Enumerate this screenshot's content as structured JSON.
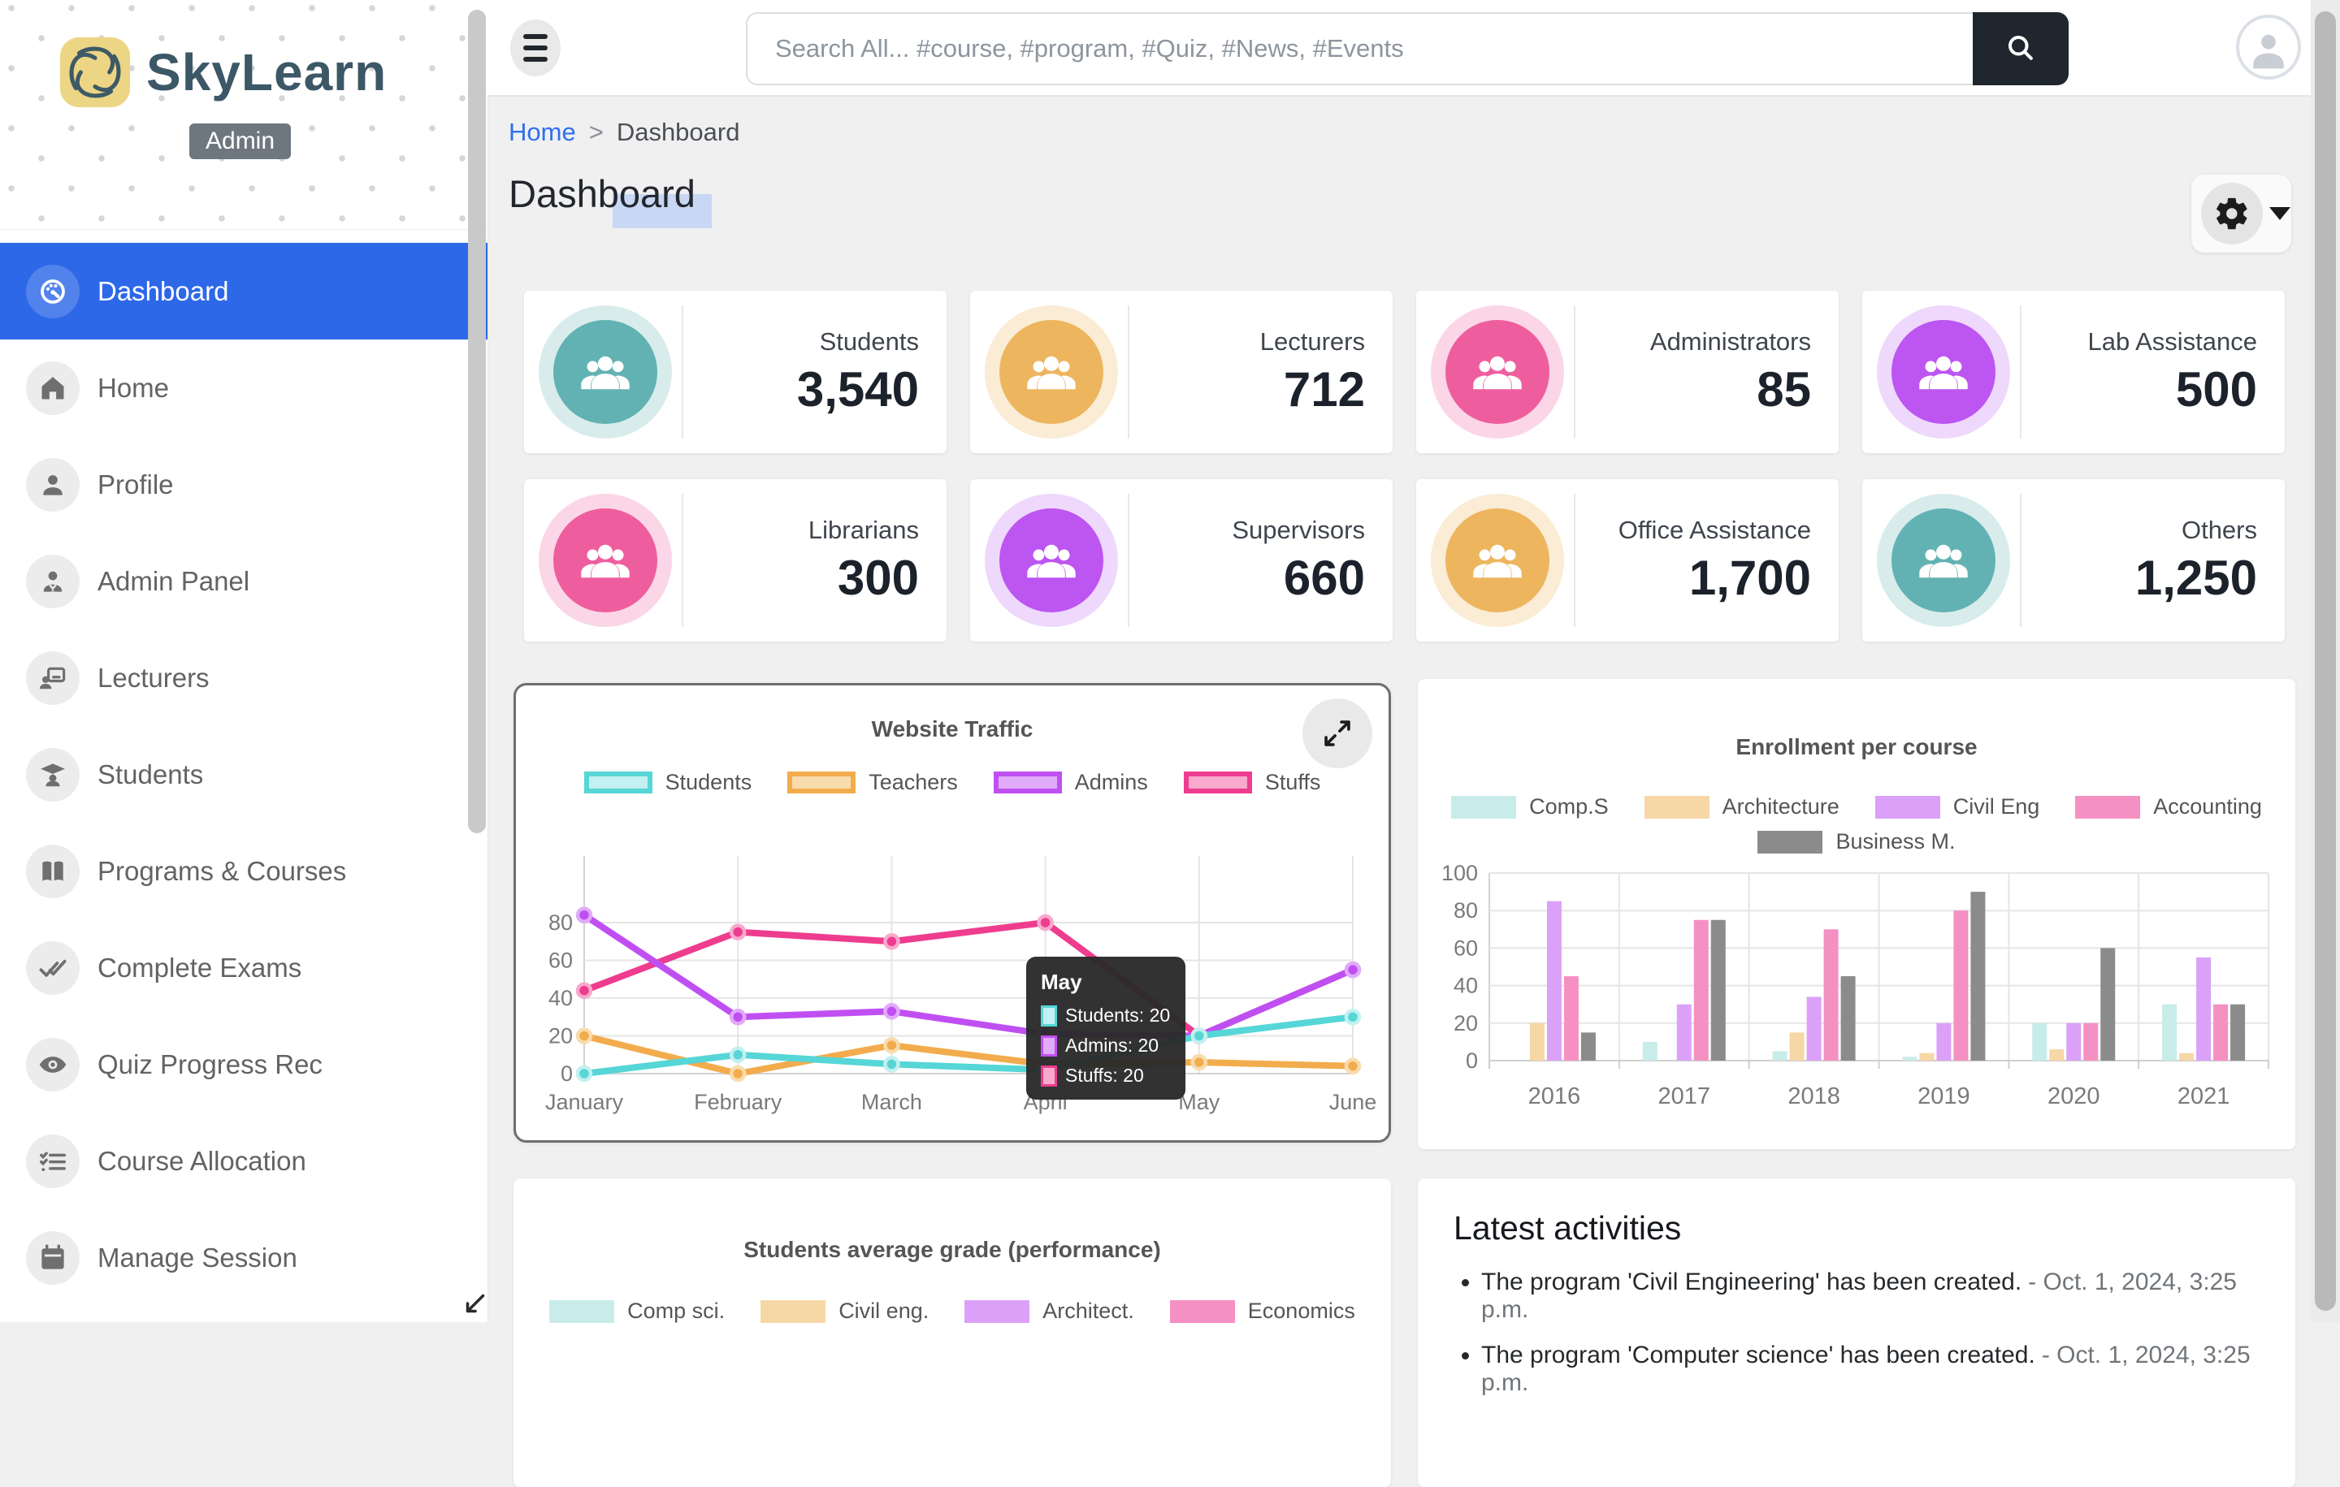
{
  "app": {
    "name": "SkyLearn",
    "badge": "Admin"
  },
  "topbar": {
    "search_placeholder": "Search All... #course, #program, #Quiz, #News, #Events"
  },
  "sidebar": {
    "items": [
      {
        "label": "Dashboard",
        "icon": "dashboard-icon",
        "active": true
      },
      {
        "label": "Home",
        "icon": "home-icon",
        "active": false
      },
      {
        "label": "Profile",
        "icon": "profile-icon",
        "active": false
      },
      {
        "label": "Admin Panel",
        "icon": "admin-panel-icon",
        "active": false
      },
      {
        "label": "Lecturers",
        "icon": "lecturers-icon",
        "active": false
      },
      {
        "label": "Students",
        "icon": "students-icon",
        "active": false
      },
      {
        "label": "Programs & Courses",
        "icon": "programs-courses-icon",
        "active": false
      },
      {
        "label": "Complete Exams",
        "icon": "complete-exams-icon",
        "active": false
      },
      {
        "label": "Quiz Progress Rec",
        "icon": "quiz-progress-icon",
        "active": false
      },
      {
        "label": "Course Allocation",
        "icon": "course-allocation-icon",
        "active": false
      },
      {
        "label": "Manage Session",
        "icon": "manage-session-icon",
        "active": false
      }
    ]
  },
  "breadcrumb": {
    "home": "Home",
    "separator": ">",
    "current": "Dashboard"
  },
  "page": {
    "title": "Dashboard"
  },
  "stats": [
    {
      "label": "Students",
      "value": "3,540",
      "color": "#62b2b3",
      "tint": "#d9ecec"
    },
    {
      "label": "Lecturers",
      "value": "712",
      "color": "#edb55e",
      "tint": "#faecd5"
    },
    {
      "label": "Administrators",
      "value": "85",
      "color": "#ee5e9e",
      "tint": "#fbd6e7"
    },
    {
      "label": "Lab Assistance",
      "value": "500",
      "color": "#bd55f1",
      "tint": "#eed8fc"
    },
    {
      "label": "Librarians",
      "value": "300",
      "color": "#ee5e9e",
      "tint": "#fbd6e7"
    },
    {
      "label": "Supervisors",
      "value": "660",
      "color": "#bd55f1",
      "tint": "#eed8fc"
    },
    {
      "label": "Office Assistance",
      "value": "1,700",
      "color": "#edb55e",
      "tint": "#faecd5"
    },
    {
      "label": "Others",
      "value": "1,250",
      "color": "#62b2b3",
      "tint": "#d9ecec"
    }
  ],
  "chart_data": [
    {
      "type": "line",
      "title": "Website Traffic",
      "categories": [
        "January",
        "February",
        "March",
        "April",
        "May",
        "June"
      ],
      "series": [
        {
          "name": "Students",
          "color": "#56d6d6",
          "fill": "#c3f0f0",
          "values": [
            0,
            10,
            5,
            2,
            20,
            30
          ]
        },
        {
          "name": "Teachers",
          "color": "#f2ac4d",
          "fill": "#f8dcae",
          "values": [
            20,
            0,
            15,
            5,
            6,
            4
          ]
        },
        {
          "name": "Admins",
          "color": "#c04ff2",
          "fill": "#e0abf8",
          "values": [
            84,
            30,
            33,
            21,
            20,
            55
          ]
        },
        {
          "name": "Stuffs",
          "color": "#ee3c8f",
          "fill": "#f8a9cc",
          "values": [
            44,
            75,
            70,
            80,
            20,
            55
          ]
        }
      ],
      "ylim": [
        0,
        100
      ],
      "yticks": [
        0,
        20,
        40,
        60,
        80
      ],
      "grid": true,
      "legend_position": "top",
      "tooltip": {
        "title": "May",
        "rows": [
          {
            "series": "Students",
            "value": 20
          },
          {
            "series": "Admins",
            "value": 20
          },
          {
            "series": "Stuffs",
            "value": 20
          }
        ]
      }
    },
    {
      "type": "bar",
      "title": "Enrollment per course",
      "categories": [
        "2016",
        "2017",
        "2018",
        "2019",
        "2020",
        "2021"
      ],
      "series": [
        {
          "name": "Comp.S",
          "color": "#c8ece9",
          "values": [
            0,
            10,
            5,
            2,
            20,
            30
          ]
        },
        {
          "name": "Architecture",
          "color": "#f6d7a6",
          "values": [
            20,
            0,
            15,
            4,
            6,
            4
          ]
        },
        {
          "name": "Civil Eng",
          "color": "#dba1f8",
          "values": [
            85,
            30,
            34,
            20,
            20,
            55
          ]
        },
        {
          "name": "Accounting",
          "color": "#f590c2",
          "values": [
            45,
            75,
            70,
            80,
            20,
            30
          ]
        },
        {
          "name": "Business M.",
          "color": "#8b8b8b",
          "values": [
            15,
            75,
            45,
            90,
            60,
            30
          ]
        }
      ],
      "ylim": [
        0,
        100
      ],
      "yticks": [
        0,
        20,
        40,
        60,
        80,
        100
      ],
      "grid": true,
      "legend_position": "top"
    },
    {
      "type": "line",
      "title": "Students average grade (performance)",
      "categories": [],
      "series": [
        {
          "name": "Comp sci.",
          "color": "#c8ece9"
        },
        {
          "name": "Civil eng.",
          "color": "#f6d7a6"
        },
        {
          "name": "Architect.",
          "color": "#dba1f8"
        },
        {
          "name": "Economics",
          "color": "#f590c2"
        }
      ],
      "legend_position": "top"
    }
  ],
  "activities": {
    "title": "Latest activities",
    "items": [
      {
        "text": "The program 'Civil Engineering' has been created.",
        "time": "- Oct. 1, 2024, 3:25 p.m."
      },
      {
        "text": "The program 'Computer science' has been created.",
        "time": "- Oct. 1, 2024, 3:25 p.m."
      }
    ]
  },
  "colors": {
    "sidebar_active": "#2d68e8",
    "link": "#2f6fed",
    "search_button": "#20262e"
  }
}
